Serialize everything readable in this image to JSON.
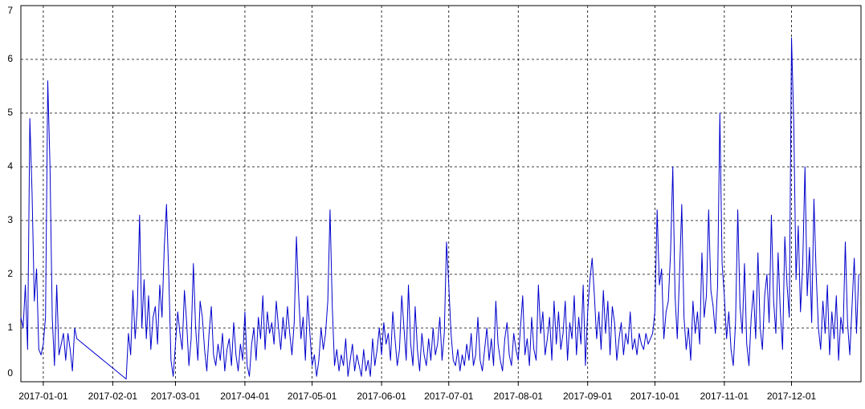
{
  "chart_data": {
    "type": "line",
    "x": [
      "2016-12-22",
      "2016-12-23",
      "2016-12-24",
      "2016-12-25",
      "2016-12-26",
      "2016-12-27",
      "2016-12-28",
      "2016-12-29",
      "2016-12-30",
      "2016-12-31",
      "2017-01-01",
      "2017-01-02",
      "2017-01-03",
      "2017-01-04",
      "2017-01-05",
      "2017-01-06",
      "2017-01-07",
      "2017-01-08",
      "2017-01-09",
      "2017-01-10",
      "2017-01-11",
      "2017-01-12",
      "2017-01-13",
      "2017-01-14",
      "2017-01-15",
      "2017-01-16",
      "2017-02-07",
      "2017-02-08",
      "2017-02-09",
      "2017-02-10",
      "2017-02-11",
      "2017-02-12",
      "2017-02-13",
      "2017-02-14",
      "2017-02-15",
      "2017-02-16",
      "2017-02-17",
      "2017-02-18",
      "2017-02-19",
      "2017-02-20",
      "2017-02-21",
      "2017-02-22",
      "2017-02-23",
      "2017-02-24",
      "2017-02-25",
      "2017-02-26",
      "2017-02-27",
      "2017-02-28",
      "2017-03-01",
      "2017-03-02",
      "2017-03-03",
      "2017-03-04",
      "2017-03-05",
      "2017-03-06",
      "2017-03-07",
      "2017-03-08",
      "2017-03-09",
      "2017-03-10",
      "2017-03-11",
      "2017-03-12",
      "2017-03-13",
      "2017-03-14",
      "2017-03-15",
      "2017-03-16",
      "2017-03-17",
      "2017-03-18",
      "2017-03-19",
      "2017-03-20",
      "2017-03-21",
      "2017-03-22",
      "2017-03-23",
      "2017-03-24",
      "2017-03-25",
      "2017-03-26",
      "2017-03-27",
      "2017-03-28",
      "2017-03-29",
      "2017-03-30",
      "2017-03-31",
      "2017-04-01",
      "2017-04-02",
      "2017-04-03",
      "2017-04-04",
      "2017-04-05",
      "2017-04-06",
      "2017-04-07",
      "2017-04-08",
      "2017-04-09",
      "2017-04-10",
      "2017-04-11",
      "2017-04-12",
      "2017-04-13",
      "2017-04-14",
      "2017-04-15",
      "2017-04-16",
      "2017-04-17",
      "2017-04-18",
      "2017-04-19",
      "2017-04-20",
      "2017-04-21",
      "2017-04-22",
      "2017-04-23",
      "2017-04-24",
      "2017-04-25",
      "2017-04-26",
      "2017-04-27",
      "2017-04-28",
      "2017-04-29",
      "2017-04-30",
      "2017-05-01",
      "2017-05-02",
      "2017-05-03",
      "2017-05-04",
      "2017-05-05",
      "2017-05-06",
      "2017-05-07",
      "2017-05-08",
      "2017-05-09",
      "2017-05-10",
      "2017-05-11",
      "2017-05-12",
      "2017-05-13",
      "2017-05-14",
      "2017-05-15",
      "2017-05-16",
      "2017-05-17",
      "2017-05-18",
      "2017-05-19",
      "2017-05-20",
      "2017-05-21",
      "2017-05-22",
      "2017-05-23",
      "2017-05-24",
      "2017-05-25",
      "2017-05-26",
      "2017-05-27",
      "2017-05-28",
      "2017-05-29",
      "2017-05-30",
      "2017-05-31",
      "2017-06-01",
      "2017-06-02",
      "2017-06-03",
      "2017-06-04",
      "2017-06-05",
      "2017-06-06",
      "2017-06-07",
      "2017-06-08",
      "2017-06-09",
      "2017-06-10",
      "2017-06-11",
      "2017-06-12",
      "2017-06-13",
      "2017-06-14",
      "2017-06-15",
      "2017-06-16",
      "2017-06-17",
      "2017-06-18",
      "2017-06-19",
      "2017-06-20",
      "2017-06-21",
      "2017-06-22",
      "2017-06-23",
      "2017-06-24",
      "2017-06-25",
      "2017-06-26",
      "2017-06-27",
      "2017-06-28",
      "2017-06-29",
      "2017-06-30",
      "2017-07-01",
      "2017-07-02",
      "2017-07-03",
      "2017-07-04",
      "2017-07-05",
      "2017-07-06",
      "2017-07-07",
      "2017-07-08",
      "2017-07-09",
      "2017-07-10",
      "2017-07-11",
      "2017-07-12",
      "2017-07-13",
      "2017-07-14",
      "2017-07-15",
      "2017-07-16",
      "2017-07-17",
      "2017-07-18",
      "2017-07-19",
      "2017-07-20",
      "2017-07-21",
      "2017-07-22",
      "2017-07-23",
      "2017-07-24",
      "2017-07-25",
      "2017-07-26",
      "2017-07-27",
      "2017-07-28",
      "2017-07-29",
      "2017-07-30",
      "2017-07-31",
      "2017-08-01",
      "2017-08-02",
      "2017-08-03",
      "2017-08-04",
      "2017-08-05",
      "2017-08-06",
      "2017-08-07",
      "2017-08-08",
      "2017-08-09",
      "2017-08-10",
      "2017-08-11",
      "2017-08-12",
      "2017-08-13",
      "2017-08-14",
      "2017-08-15",
      "2017-08-16",
      "2017-08-17",
      "2017-08-18",
      "2017-08-19",
      "2017-08-20",
      "2017-08-21",
      "2017-08-22",
      "2017-08-23",
      "2017-08-24",
      "2017-08-25",
      "2017-08-26",
      "2017-08-27",
      "2017-08-28",
      "2017-08-29",
      "2017-08-30",
      "2017-08-31",
      "2017-09-01",
      "2017-09-02",
      "2017-09-03",
      "2017-09-04",
      "2017-09-05",
      "2017-09-06",
      "2017-09-07",
      "2017-09-08",
      "2017-09-09",
      "2017-09-10",
      "2017-09-11",
      "2017-09-12",
      "2017-09-13",
      "2017-09-14",
      "2017-09-15",
      "2017-09-16",
      "2017-09-17",
      "2017-09-18",
      "2017-09-19",
      "2017-09-20",
      "2017-09-21",
      "2017-09-22",
      "2017-09-23",
      "2017-09-24",
      "2017-09-25",
      "2017-09-26",
      "2017-09-27",
      "2017-09-28",
      "2017-09-29",
      "2017-09-30",
      "2017-10-01",
      "2017-10-02",
      "2017-10-03",
      "2017-10-04",
      "2017-10-05",
      "2017-10-06",
      "2017-10-07",
      "2017-10-08",
      "2017-10-09",
      "2017-10-10",
      "2017-10-11",
      "2017-10-12",
      "2017-10-13",
      "2017-10-14",
      "2017-10-15",
      "2017-10-16",
      "2017-10-17",
      "2017-10-18",
      "2017-10-19",
      "2017-10-20",
      "2017-10-21",
      "2017-10-22",
      "2017-10-23",
      "2017-10-24",
      "2017-10-25",
      "2017-10-26",
      "2017-10-27",
      "2017-10-28",
      "2017-10-29",
      "2017-10-30",
      "2017-10-31",
      "2017-11-01",
      "2017-11-02",
      "2017-11-03",
      "2017-11-04",
      "2017-11-05",
      "2017-11-06",
      "2017-11-07",
      "2017-11-08",
      "2017-11-09",
      "2017-11-10",
      "2017-11-11",
      "2017-11-12",
      "2017-11-13",
      "2017-11-14",
      "2017-11-15",
      "2017-11-16",
      "2017-11-17",
      "2017-11-18",
      "2017-11-19",
      "2017-11-20",
      "2017-11-21",
      "2017-11-22",
      "2017-11-23",
      "2017-11-24",
      "2017-11-25",
      "2017-11-26",
      "2017-11-27",
      "2017-11-28",
      "2017-11-29",
      "2017-11-30",
      "2017-12-01",
      "2017-12-02",
      "2017-12-03",
      "2017-12-04",
      "2017-12-05",
      "2017-12-06",
      "2017-12-07",
      "2017-12-08",
      "2017-12-09",
      "2017-12-10",
      "2017-12-11",
      "2017-12-12",
      "2017-12-13",
      "2017-12-14",
      "2017-12-15",
      "2017-12-16",
      "2017-12-17",
      "2017-12-18",
      "2017-12-19",
      "2017-12-20",
      "2017-12-21",
      "2017-12-22",
      "2017-12-23",
      "2017-12-24",
      "2017-12-25",
      "2017-12-26",
      "2017-12-27",
      "2017-12-28",
      "2017-12-29",
      "2017-12-30",
      "2017-12-31"
    ],
    "series": [
      {
        "color": "#0000cc",
        "values": [
          1.2,
          1.0,
          1.8,
          0.6,
          4.9,
          3.5,
          1.5,
          2.1,
          0.6,
          0.5,
          0.7,
          1.2,
          5.6,
          4.0,
          1.2,
          0.3,
          1.8,
          0.5,
          0.7,
          0.9,
          0.4,
          0.9,
          0.6,
          0.2,
          1.0,
          0.8,
          0.05,
          0.9,
          0.5,
          1.7,
          0.8,
          1.4,
          3.1,
          1.0,
          1.9,
          0.8,
          1.6,
          0.6,
          1.2,
          1.4,
          0.7,
          1.8,
          1.2,
          2.5,
          3.3,
          2.0,
          0.4,
          0.1,
          0.7,
          1.3,
          0.9,
          0.6,
          1.7,
          1.1,
          0.3,
          0.8,
          2.2,
          1.0,
          0.4,
          1.5,
          1.2,
          0.6,
          0.2,
          0.9,
          1.4,
          0.5,
          0.3,
          0.7,
          0.4,
          0.9,
          0.2,
          0.6,
          0.8,
          0.3,
          1.1,
          0.5,
          0.2,
          0.7,
          0.4,
          1.3,
          0.3,
          0.1,
          0.7,
          1.0,
          0.4,
          1.2,
          0.8,
          1.6,
          0.6,
          1.3,
          0.9,
          1.1,
          0.7,
          1.5,
          1.0,
          0.6,
          1.2,
          0.8,
          1.4,
          0.9,
          0.5,
          1.1,
          2.7,
          1.6,
          0.8,
          1.2,
          0.4,
          1.6,
          0.9,
          0.3,
          0.5,
          0.1,
          0.4,
          1.0,
          0.6,
          0.9,
          1.5,
          3.2,
          1.4,
          0.3,
          0.6,
          0.2,
          0.5,
          0.3,
          0.8,
          0.1,
          0.4,
          0.7,
          0.2,
          0.5,
          0.3,
          0.1,
          0.6,
          0.2,
          0.4,
          0.1,
          0.8,
          0.3,
          0.6,
          1.0,
          0.5,
          1.1,
          0.7,
          0.9,
          0.4,
          1.3,
          0.8,
          0.3,
          0.6,
          1.6,
          1.0,
          0.4,
          1.8,
          0.7,
          0.3,
          1.4,
          0.6,
          0.2,
          0.9,
          0.5,
          0.3,
          0.8,
          0.4,
          1.0,
          0.5,
          0.7,
          1.2,
          0.4,
          0.9,
          2.6,
          1.8,
          0.9,
          0.4,
          0.3,
          0.6,
          0.2,
          0.5,
          0.3,
          0.7,
          0.4,
          0.9,
          0.3,
          0.5,
          1.2,
          0.4,
          0.2,
          0.6,
          1.0,
          0.4,
          0.8,
          0.3,
          1.5,
          0.7,
          0.4,
          0.2,
          0.8,
          1.1,
          0.5,
          0.3,
          0.9,
          0.6,
          0.4,
          1.0,
          1.6,
          0.5,
          0.8,
          0.3,
          1.2,
          0.6,
          0.4,
          1.8,
          0.9,
          1.3,
          0.5,
          0.8,
          1.2,
          0.4,
          1.5,
          0.7,
          1.3,
          0.6,
          0.9,
          1.5,
          0.4,
          1.1,
          0.8,
          1.6,
          0.5,
          1.2,
          0.7,
          1.8,
          0.3,
          1.3,
          1.9,
          2.3,
          1.6,
          0.8,
          1.3,
          0.6,
          1.7,
          0.9,
          1.5,
          0.5,
          1.4,
          1.1,
          0.4,
          0.8,
          1.1,
          0.5,
          0.9,
          0.7,
          1.3,
          0.6,
          0.8,
          0.5,
          0.9,
          0.7,
          0.6,
          0.9,
          0.7,
          0.8,
          0.9,
          1.3,
          3.2,
          1.8,
          2.1,
          0.8,
          1.3,
          1.5,
          2.4,
          4.0,
          1.6,
          0.8,
          2.0,
          3.3,
          1.2,
          0.6,
          1.0,
          0.4,
          1.5,
          0.9,
          1.3,
          0.7,
          2.4,
          1.2,
          1.6,
          3.2,
          1.7,
          1.4,
          0.9,
          1.8,
          5.0,
          2.2,
          1.6,
          0.8,
          1.3,
          0.6,
          0.3,
          1.1,
          3.2,
          1.4,
          0.9,
          2.2,
          0.7,
          0.3,
          1.2,
          1.7,
          0.8,
          2.4,
          1.0,
          0.6,
          1.6,
          2.0,
          1.1,
          3.1,
          1.5,
          0.9,
          2.4,
          1.3,
          0.6,
          2.7,
          1.8,
          1.2,
          6.4,
          4.8,
          1.9,
          2.9,
          1.3,
          2.2,
          4.0,
          1.6,
          2.5,
          1.1,
          3.4,
          2.0,
          1.0,
          0.6,
          1.5,
          0.9,
          1.8,
          0.5,
          1.3,
          0.8,
          1.6,
          0.4,
          1.2,
          0.9,
          2.6,
          1.1,
          0.5,
          1.4,
          2.3,
          0.9,
          2.0
        ]
      }
    ],
    "xlim": [
      "2016-12-22",
      "2018-01-01"
    ],
    "xticks": [
      "2017-01-01",
      "2017-02-01",
      "2017-03-01",
      "2017-04-01",
      "2017-05-01",
      "2017-06-01",
      "2017-07-01",
      "2017-08-01",
      "2017-09-01",
      "2017-10-01",
      "2017-11-01",
      "2017-12-01"
    ],
    "ylim": [
      0,
      7
    ],
    "yticks": [
      0,
      1,
      2,
      3,
      4,
      5,
      6,
      7
    ],
    "grid": true
  }
}
